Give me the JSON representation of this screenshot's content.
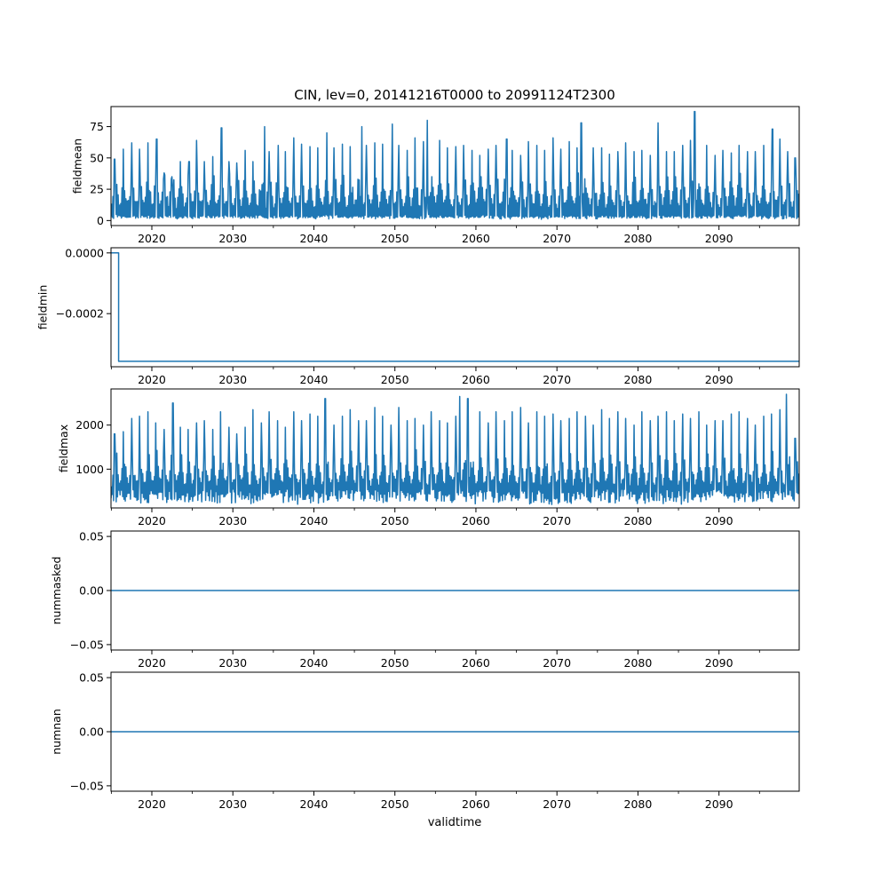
{
  "figure": {
    "title": "CIN, lev=0, 20141216T0000 to 20991124T2300",
    "xlabel": "validtime"
  },
  "colors": {
    "line": "#1f77b4",
    "axis": "#000000",
    "background": "#ffffff"
  },
  "chart_data": [
    {
      "type": "line",
      "ylabel": "fieldmean",
      "xlim": [
        2014.96,
        2099.9
      ],
      "ylim": [
        -4,
        91
      ],
      "x_ticks": [
        2020,
        2030,
        2040,
        2050,
        2060,
        2070,
        2080,
        2090
      ],
      "x_tick_labels": [
        "2020",
        "2030",
        "2040",
        "2050",
        "2060",
        "2070",
        "2080",
        "2090"
      ],
      "y_ticks": [
        0,
        25,
        50,
        75
      ],
      "y_tick_labels": [
        "0",
        "25",
        "50",
        "75"
      ],
      "series": [
        {
          "style": "dense-oscillation",
          "x_start": 2014.96,
          "x_end": 2099.9,
          "typical_low": 2,
          "typical_high": 40,
          "yearly_peaks": [
            [
              2015.4,
              49
            ],
            [
              2016.5,
              57
            ],
            [
              2017.5,
              62
            ],
            [
              2018.5,
              57
            ],
            [
              2019.5,
              62
            ],
            [
              2020.6,
              65
            ],
            [
              2021.5,
              38
            ],
            [
              2022.5,
              35
            ],
            [
              2023.5,
              47
            ],
            [
              2024.6,
              47
            ],
            [
              2025.5,
              64
            ],
            [
              2026.5,
              47
            ],
            [
              2027.5,
              51
            ],
            [
              2028.6,
              74
            ],
            [
              2029.5,
              47
            ],
            [
              2030.5,
              46
            ],
            [
              2031.5,
              56
            ],
            [
              2032.5,
              47
            ],
            [
              2033.9,
              75
            ],
            [
              2034.5,
              55
            ],
            [
              2035.6,
              60
            ],
            [
              2036.5,
              55
            ],
            [
              2037.5,
              66
            ],
            [
              2038.5,
              61
            ],
            [
              2039.5,
              59
            ],
            [
              2040.5,
              58
            ],
            [
              2041.6,
              70
            ],
            [
              2042.5,
              58
            ],
            [
              2043.5,
              61
            ],
            [
              2044.5,
              59
            ],
            [
              2045.9,
              75
            ],
            [
              2046.5,
              60
            ],
            [
              2047.5,
              62
            ],
            [
              2048.5,
              61
            ],
            [
              2049.7,
              77
            ],
            [
              2050.5,
              60
            ],
            [
              2051.5,
              56
            ],
            [
              2052.5,
              66
            ],
            [
              2053.5,
              63
            ],
            [
              2054.0,
              80
            ],
            [
              2055.5,
              64
            ],
            [
              2056.5,
              58
            ],
            [
              2057.5,
              59
            ],
            [
              2058.5,
              60
            ],
            [
              2059.5,
              56
            ],
            [
              2060.5,
              52
            ],
            [
              2061.5,
              57
            ],
            [
              2062.5,
              60
            ],
            [
              2063.8,
              65
            ],
            [
              2064.5,
              56
            ],
            [
              2065.5,
              52
            ],
            [
              2066.5,
              63
            ],
            [
              2067.5,
              60
            ],
            [
              2068.5,
              56
            ],
            [
              2069.5,
              66
            ],
            [
              2070.5,
              57
            ],
            [
              2071.5,
              63
            ],
            [
              2072.5,
              58
            ],
            [
              2073.0,
              78
            ],
            [
              2074.5,
              58
            ],
            [
              2075.5,
              58
            ],
            [
              2076.5,
              53
            ],
            [
              2077.5,
              55
            ],
            [
              2078.5,
              62
            ],
            [
              2079.5,
              55
            ],
            [
              2080.5,
              56
            ],
            [
              2081.5,
              52
            ],
            [
              2082.5,
              78
            ],
            [
              2083.5,
              55
            ],
            [
              2084.5,
              55
            ],
            [
              2085.5,
              60
            ],
            [
              2086.5,
              64
            ],
            [
              2087.0,
              87
            ],
            [
              2088.5,
              60
            ],
            [
              2089.5,
              52
            ],
            [
              2090.5,
              56
            ],
            [
              2091.5,
              54
            ],
            [
              2092.5,
              60
            ],
            [
              2093.5,
              55
            ],
            [
              2094.5,
              55
            ],
            [
              2095.5,
              60
            ],
            [
              2096.6,
              73
            ],
            [
              2097.5,
              65
            ],
            [
              2098.5,
              55
            ],
            [
              2099.4,
              50
            ]
          ]
        }
      ]
    },
    {
      "type": "line",
      "ylabel": "fieldmin",
      "xlim": [
        2014.96,
        2099.9
      ],
      "ylim": [
        -0.000375,
        1.7e-05
      ],
      "x_ticks": [
        2020,
        2030,
        2040,
        2050,
        2060,
        2070,
        2080,
        2090
      ],
      "x_tick_labels": [
        "2020",
        "2030",
        "2040",
        "2050",
        "2060",
        "2070",
        "2080",
        "2090"
      ],
      "y_ticks": [
        0,
        -0.0002
      ],
      "y_tick_labels": [
        "0.0000",
        "−0.0002"
      ],
      "series": [
        {
          "style": "steps",
          "points": [
            [
              2014.96,
              0
            ],
            [
              2015.9,
              0
            ],
            [
              2015.9,
              -0.000357
            ],
            [
              2099.9,
              -0.000357
            ]
          ]
        }
      ]
    },
    {
      "type": "line",
      "ylabel": "fieldmax",
      "xlim": [
        2014.96,
        2099.9
      ],
      "ylim": [
        120,
        2820
      ],
      "x_ticks": [
        2020,
        2030,
        2040,
        2050,
        2060,
        2070,
        2080,
        2090
      ],
      "x_tick_labels": [
        "2020",
        "2030",
        "2040",
        "2050",
        "2060",
        "2070",
        "2080",
        "2090"
      ],
      "y_ticks": [
        1000,
        2000
      ],
      "y_tick_labels": [
        "1000",
        "2000"
      ],
      "series": [
        {
          "style": "dense-oscillation",
          "x_start": 2014.96,
          "x_end": 2099.9,
          "typical_low": 380,
          "typical_high": 1500,
          "yearly_peaks": [
            [
              2015.4,
              1800
            ],
            [
              2016.5,
              1850
            ],
            [
              2017.5,
              2150
            ],
            [
              2018.5,
              2200
            ],
            [
              2019.5,
              2300
            ],
            [
              2020.5,
              2050
            ],
            [
              2021.5,
              1900
            ],
            [
              2022.6,
              2500
            ],
            [
              2023.5,
              1950
            ],
            [
              2024.5,
              1900
            ],
            [
              2025.5,
              2050
            ],
            [
              2026.5,
              2100
            ],
            [
              2027.5,
              1900
            ],
            [
              2028.5,
              2300
            ],
            [
              2029.5,
              1950
            ],
            [
              2030.5,
              1800
            ],
            [
              2031.5,
              1950
            ],
            [
              2032.5,
              2350
            ],
            [
              2033.5,
              2050
            ],
            [
              2034.5,
              2300
            ],
            [
              2035.5,
              2100
            ],
            [
              2036.5,
              1950
            ],
            [
              2037.5,
              2300
            ],
            [
              2038.5,
              2100
            ],
            [
              2039.5,
              2250
            ],
            [
              2040.5,
              2200
            ],
            [
              2041.4,
              2600
            ],
            [
              2042.5,
              2000
            ],
            [
              2043.5,
              2200
            ],
            [
              2044.5,
              2350
            ],
            [
              2045.5,
              2100
            ],
            [
              2046.5,
              2100
            ],
            [
              2047.5,
              2400
            ],
            [
              2048.5,
              2200
            ],
            [
              2049.5,
              2000
            ],
            [
              2050.5,
              2400
            ],
            [
              2051.5,
              2100
            ],
            [
              2052.5,
              2150
            ],
            [
              2053.5,
              2000
            ],
            [
              2054.5,
              2300
            ],
            [
              2055.5,
              2100
            ],
            [
              2056.5,
              2050
            ],
            [
              2057.5,
              2200
            ],
            [
              2058.0,
              2650
            ],
            [
              2059.0,
              2600
            ],
            [
              2060.5,
              2300
            ],
            [
              2061.5,
              2050
            ],
            [
              2062.5,
              2300
            ],
            [
              2063.5,
              2100
            ],
            [
              2064.5,
              2300
            ],
            [
              2065.5,
              2400
            ],
            [
              2066.5,
              2050
            ],
            [
              2067.5,
              2300
            ],
            [
              2068.5,
              2200
            ],
            [
              2069.5,
              2250
            ],
            [
              2070.5,
              2100
            ],
            [
              2071.5,
              2150
            ],
            [
              2072.5,
              2300
            ],
            [
              2073.5,
              2200
            ],
            [
              2074.5,
              2000
            ],
            [
              2075.5,
              2350
            ],
            [
              2076.5,
              2150
            ],
            [
              2077.5,
              2300
            ],
            [
              2078.5,
              2150
            ],
            [
              2079.5,
              2000
            ],
            [
              2080.5,
              2300
            ],
            [
              2081.5,
              2100
            ],
            [
              2082.5,
              2200
            ],
            [
              2083.5,
              2300
            ],
            [
              2084.5,
              2100
            ],
            [
              2085.5,
              2250
            ],
            [
              2086.5,
              2150
            ],
            [
              2087.5,
              2300
            ],
            [
              2088.5,
              2000
            ],
            [
              2089.5,
              2100
            ],
            [
              2090.5,
              2100
            ],
            [
              2091.5,
              2250
            ],
            [
              2092.5,
              2300
            ],
            [
              2093.5,
              2150
            ],
            [
              2094.5,
              2000
            ],
            [
              2095.5,
              2200
            ],
            [
              2096.5,
              2250
            ],
            [
              2097.5,
              2350
            ],
            [
              2098.3,
              2700
            ],
            [
              2099.4,
              1700
            ]
          ]
        }
      ]
    },
    {
      "type": "line",
      "ylabel": "nummasked",
      "xlim": [
        2014.96,
        2099.9
      ],
      "ylim": [
        -0.055,
        0.055
      ],
      "x_ticks": [
        2020,
        2030,
        2040,
        2050,
        2060,
        2070,
        2080,
        2090
      ],
      "x_tick_labels": [
        "2020",
        "2030",
        "2040",
        "2050",
        "2060",
        "2070",
        "2080",
        "2090"
      ],
      "y_ticks": [
        0.05,
        0,
        -0.05
      ],
      "y_tick_labels": [
        "0.05",
        "0.00",
        "−0.05"
      ],
      "series": [
        {
          "style": "steps",
          "points": [
            [
              2014.96,
              0
            ],
            [
              2099.9,
              0
            ]
          ]
        }
      ]
    },
    {
      "type": "line",
      "ylabel": "numnan",
      "xlim": [
        2014.96,
        2099.9
      ],
      "ylim": [
        -0.055,
        0.055
      ],
      "x_ticks": [
        2020,
        2030,
        2040,
        2050,
        2060,
        2070,
        2080,
        2090
      ],
      "x_tick_labels": [
        "2020",
        "2030",
        "2040",
        "2050",
        "2060",
        "2070",
        "2080",
        "2090"
      ],
      "y_ticks": [
        0.05,
        0,
        -0.05
      ],
      "y_tick_labels": [
        "0.05",
        "0.00",
        "−0.05"
      ],
      "series": [
        {
          "style": "steps",
          "points": [
            [
              2014.96,
              0
            ],
            [
              2099.9,
              0
            ]
          ]
        }
      ]
    }
  ]
}
